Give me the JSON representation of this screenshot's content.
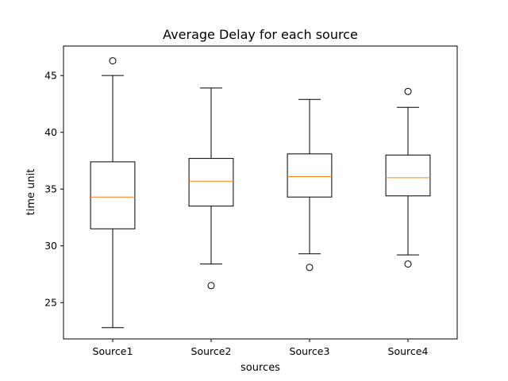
{
  "chart_data": {
    "type": "box",
    "title": "Average Delay for each source",
    "xlabel": "sources",
    "ylabel": "time unit",
    "ylim": [
      21.8,
      47.6
    ],
    "yticks": [
      25,
      30,
      35,
      40,
      45
    ],
    "categories": [
      "Source1",
      "Source2",
      "Source3",
      "Source4"
    ],
    "boxes": [
      {
        "name": "Source1",
        "whisker_low": 22.8,
        "q1": 31.5,
        "median": 34.3,
        "q3": 37.4,
        "whisker_high": 45.0,
        "outliers": [
          46.3
        ]
      },
      {
        "name": "Source2",
        "whisker_low": 28.4,
        "q1": 33.5,
        "median": 35.7,
        "q3": 37.7,
        "whisker_high": 43.9,
        "outliers": [
          26.5
        ]
      },
      {
        "name": "Source3",
        "whisker_low": 29.3,
        "q1": 34.3,
        "median": 36.1,
        "q3": 38.1,
        "whisker_high": 42.9,
        "outliers": [
          28.1
        ]
      },
      {
        "name": "Source4",
        "whisker_low": 29.2,
        "q1": 34.4,
        "median": 36.0,
        "q3": 38.0,
        "whisker_high": 42.2,
        "outliers": [
          28.4,
          43.6
        ]
      }
    ],
    "colors": {
      "box": "#000000",
      "median": "#ff7f0e"
    },
    "grid": false
  }
}
